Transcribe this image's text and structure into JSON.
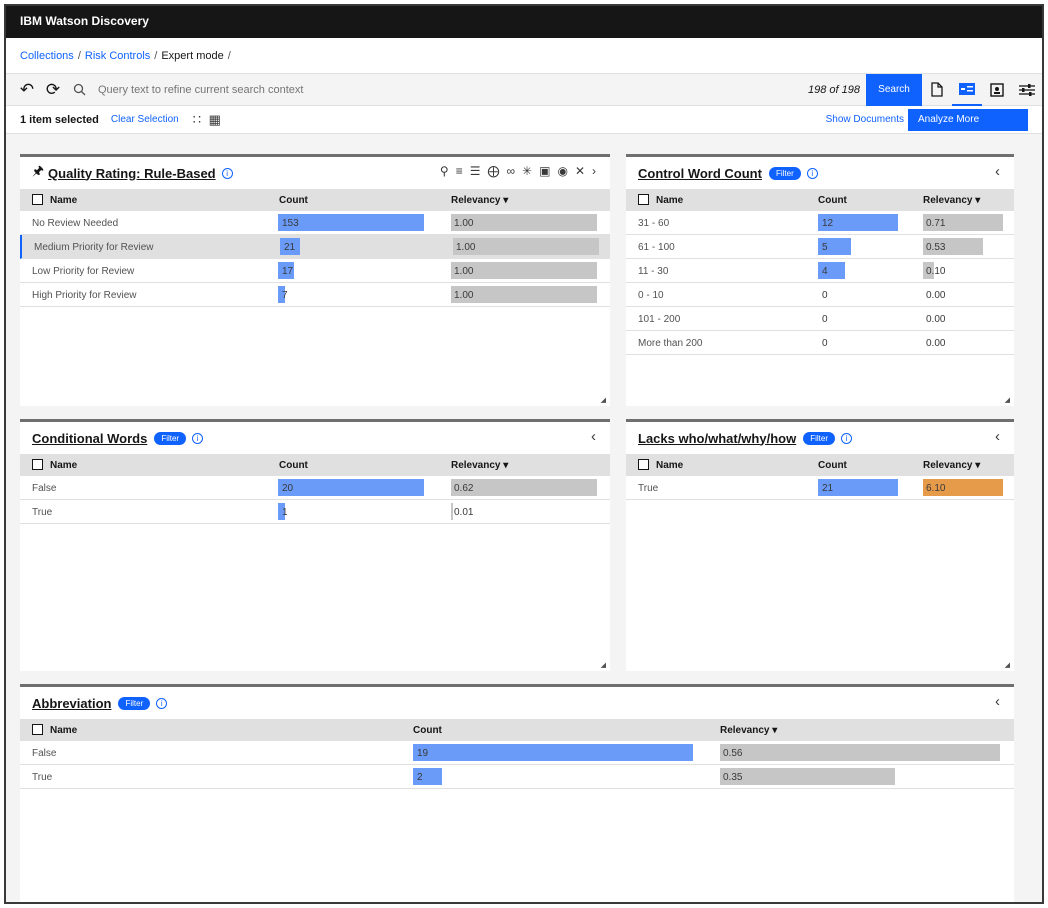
{
  "app": {
    "title": "IBM Watson Discovery"
  },
  "breadcrumb": {
    "items": [
      "Collections",
      "Risk Controls"
    ],
    "current": "Expert mode",
    "sep": "/"
  },
  "search": {
    "placeholder": "Query text to refine current search context",
    "count": "198 of 198",
    "button": "Search"
  },
  "selection": {
    "text": "1 item selected",
    "clear": "Clear Selection",
    "show_docs": "Show Documents",
    "analyze": "Analyze More"
  },
  "table_headers": {
    "name": "Name",
    "count": "Count",
    "relevancy": "Relevancy ▾"
  },
  "cards": {
    "quality": {
      "title": "Quality Rating: Rule-Based",
      "rows": [
        {
          "name": "No Review Needed",
          "count": 153,
          "relevancy": "1.00"
        },
        {
          "name": "Medium Priority for Review",
          "count": 21,
          "relevancy": "1.00"
        },
        {
          "name": "Low Priority for Review",
          "count": 17,
          "relevancy": "1.00"
        },
        {
          "name": "High Priority for Review",
          "count": 7,
          "relevancy": "1.00"
        }
      ]
    },
    "control": {
      "title": "Control Word Count",
      "filter": "Filter",
      "rows": [
        {
          "name": "31 - 60",
          "count": 12,
          "relevancy": "0.71"
        },
        {
          "name": "61 - 100",
          "count": 5,
          "relevancy": "0.53"
        },
        {
          "name": "11 - 30",
          "count": 4,
          "relevancy": "0.10"
        },
        {
          "name": "0 - 10",
          "count": 0,
          "relevancy": "0.00"
        },
        {
          "name": "101 - 200",
          "count": 0,
          "relevancy": "0.00"
        },
        {
          "name": "More than 200",
          "count": 0,
          "relevancy": "0.00"
        }
      ]
    },
    "conditional": {
      "title": "Conditional Words",
      "filter": "Filter",
      "rows": [
        {
          "name": "False",
          "count": 20,
          "relevancy": "0.62"
        },
        {
          "name": "True",
          "count": 1,
          "relevancy": "0.01"
        }
      ]
    },
    "lacks": {
      "title": "Lacks who/what/why/how",
      "filter": "Filter",
      "rows": [
        {
          "name": "True",
          "count": 21,
          "relevancy": "6.10"
        }
      ]
    },
    "abbrev": {
      "title": "Abbreviation",
      "filter": "Filter",
      "rows": [
        {
          "name": "False",
          "count": 19,
          "relevancy": "0.56"
        },
        {
          "name": "True",
          "count": 2,
          "relevancy": "0.35"
        }
      ]
    }
  },
  "colors": {
    "accent": "#0f62fe",
    "count_bar": "#6b9bf8",
    "relevancy_bar": "#c6c6c6",
    "relevancy_high": "#e59b4a",
    "header": "#161616"
  },
  "icons": [
    "undo-icon",
    "history-icon",
    "search-icon",
    "document-icon",
    "list-view-icon",
    "image-view-icon",
    "settings-sliders-icon",
    "pin-icon",
    "info-icon",
    "chevron-left-icon",
    "chevron-right-icon",
    "close-icon",
    "camera-icon"
  ]
}
